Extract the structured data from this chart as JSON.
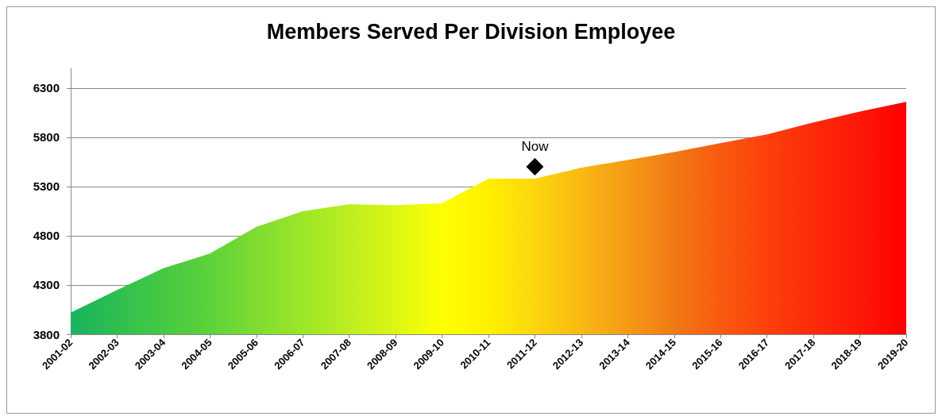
{
  "chart_data": {
    "type": "area",
    "title": "Members Served Per Division Employee",
    "categories": [
      "2001-02",
      "2002-03",
      "2003-04",
      "2004-05",
      "2005-06",
      "2006-07",
      "2007-08",
      "2008-09",
      "2009-10",
      "2010-11",
      "2011-12",
      "2012-13",
      "2013-14",
      "2014-15",
      "2015-16",
      "2016-17",
      "2017-18",
      "2018-19",
      "2019-20"
    ],
    "series": [
      {
        "colors": [
          "#18b35e",
          "#2fbf4f",
          "#46c943",
          "#5dd23a",
          "#7fdc30",
          "#9de628",
          "#bdee20",
          "#dcf714",
          "#ffff00",
          "#fff000",
          "#fcd60e",
          "#f9b814",
          "#f59a16",
          "#f07a14",
          "#f95a10",
          "#fd400c",
          "#fc2a0a",
          "#fd1808",
          "#ff0000"
        ],
        "values": [
          4020,
          4250,
          4470,
          4620,
          4890,
          5050,
          5120,
          5110,
          5130,
          5380,
          5380,
          5490,
          5570,
          5650,
          5740,
          5830,
          5950,
          6060,
          6160
        ]
      },
      {
        "type": "scatter",
        "name": "Now",
        "color": "#000000",
        "marker": "diamond",
        "values": [
          null,
          null,
          null,
          null,
          null,
          null,
          null,
          null,
          null,
          null,
          5500,
          null,
          null,
          null,
          null,
          null,
          null,
          null,
          null
        ]
      }
    ],
    "ylim": [
      3800,
      6500
    ],
    "yticks": [
      3800,
      4300,
      4800,
      5300,
      5800,
      6300
    ],
    "grid": "y",
    "legend": false
  }
}
